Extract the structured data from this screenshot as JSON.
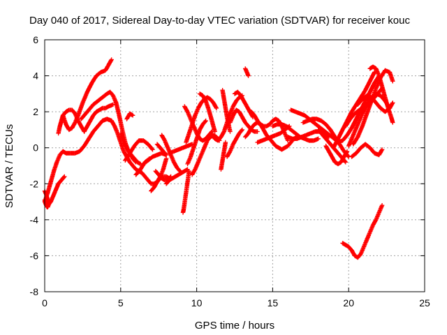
{
  "chart_data": {
    "type": "scatter",
    "title": "Day 040 of 2017, Sidereal Day-to-day VTEC variation (SDTVAR) for receiver kouc",
    "xlabel": "GPS time / hours",
    "ylabel": "SDTVAR / TECUs",
    "xlim": [
      0,
      25
    ],
    "ylim": [
      -8,
      6
    ],
    "xticks": [
      "0",
      "5",
      "10",
      "15",
      "20",
      "25"
    ],
    "yticks": [
      "-8",
      "-6",
      "-4",
      "-2",
      "0",
      "2",
      "4",
      "6"
    ],
    "grid": true,
    "marker": "plus",
    "color": "#ff0000",
    "series": [
      {
        "x": [
          0.0,
          0.05,
          0.1,
          0.15,
          0.2,
          0.25,
          0.3,
          0.35
        ],
        "y": [
          -2.9,
          -3.1,
          -3.2,
          -3.3,
          -3.3,
          -3.2,
          -3.1,
          -3.0
        ]
      },
      {
        "x": [
          0.0,
          0.1,
          0.2,
          0.3,
          0.4,
          0.5,
          0.6,
          0.7,
          0.8,
          0.9,
          1.0,
          1.1,
          1.2,
          1.3
        ],
        "y": [
          -2.4,
          -2.6,
          -2.9,
          -3.1,
          -3.0,
          -2.8,
          -2.6,
          -2.4,
          -2.2,
          -2.0,
          -1.9,
          -1.8,
          -1.7,
          -1.6
        ]
      },
      {
        "x": [
          0.0,
          0.2,
          0.4,
          0.6,
          0.8,
          1.0,
          1.2,
          1.4,
          1.7,
          2.0,
          2.3,
          2.6,
          2.9,
          3.2,
          3.5,
          3.8,
          4.1,
          4.4
        ],
        "y": [
          -3.0,
          -2.5,
          -1.9,
          -1.3,
          -0.8,
          -0.4,
          -0.2,
          -0.3,
          -0.3,
          -0.3,
          -0.2,
          0.1,
          0.5,
          0.9,
          1.2,
          1.5,
          1.6,
          1.5
        ]
      },
      {
        "x": [
          0.9,
          1.0,
          1.1,
          1.2,
          1.4,
          1.6,
          1.8,
          2.0,
          2.2,
          2.4,
          2.6
        ],
        "y": [
          0.8,
          1.2,
          1.5,
          1.8,
          2.0,
          2.1,
          2.1,
          1.9,
          1.5,
          1.2,
          0.9
        ]
      },
      {
        "x": [
          1.2,
          1.4,
          1.6,
          1.8,
          2.0,
          2.2,
          2.5,
          2.8,
          3.1,
          3.4,
          3.7,
          4.0,
          4.2,
          4.4
        ],
        "y": [
          1.8,
          1.3,
          1.0,
          1.1,
          1.4,
          1.8,
          2.5,
          3.1,
          3.6,
          4.0,
          4.2,
          4.3,
          4.6,
          4.9
        ]
      },
      {
        "x": [
          2.4,
          2.6,
          2.8,
          3.0,
          3.2,
          3.5,
          3.8,
          4.1,
          4.3,
          4.5,
          4.7
        ],
        "y": [
          1.6,
          1.8,
          2.0,
          2.2,
          2.4,
          2.6,
          2.8,
          3.0,
          3.1,
          2.9,
          2.5
        ]
      },
      {
        "x": [
          2.6,
          2.8,
          3.0,
          3.2,
          3.4,
          3.6,
          3.8,
          4.0,
          4.2,
          4.5
        ],
        "y": [
          0.9,
          1.2,
          1.5,
          1.8,
          2.0,
          2.1,
          2.2,
          2.2,
          2.3,
          2.4
        ]
      },
      {
        "x": [
          4.4,
          4.6,
          4.8,
          5.0,
          5.2,
          5.4,
          5.6,
          5.8,
          6.0,
          6.2,
          6.4
        ],
        "y": [
          1.5,
          1.2,
          0.8,
          0.3,
          -0.2,
          -0.5,
          -0.8,
          -1.0,
          -1.2,
          -1.3,
          -1.4
        ]
      },
      {
        "x": [
          4.7,
          4.9,
          5.1,
          5.3,
          5.5,
          5.7,
          5.9,
          6.1,
          6.3
        ],
        "y": [
          2.5,
          1.8,
          1.0,
          0.3,
          -0.2,
          -0.4,
          -0.6,
          -0.8,
          -0.9
        ]
      },
      {
        "x": [
          5.0,
          5.2,
          5.4,
          5.6,
          5.8,
          6.0
        ],
        "y": [
          0.8,
          0.3,
          0.0,
          -0.3,
          -0.6,
          -0.8
        ]
      },
      {
        "x": [
          5.3,
          5.6,
          5.9,
          6.2,
          6.5,
          6.8,
          7.1
        ],
        "y": [
          -0.7,
          -0.3,
          0.1,
          0.4,
          0.4,
          0.2,
          -0.1
        ]
      },
      {
        "x": [
          5.4,
          5.6,
          5.8
        ],
        "y": [
          1.6,
          1.9,
          1.8
        ]
      },
      {
        "x": [
          6.0,
          6.3,
          6.6,
          6.9
        ],
        "y": [
          -1.5,
          -1.2,
          -0.8,
          -0.6
        ]
      },
      {
        "x": [
          6.4,
          6.6,
          6.8,
          7.0,
          7.2,
          7.4,
          7.6,
          7.8,
          8.0
        ],
        "y": [
          -1.4,
          -1.6,
          -1.8,
          -2.0,
          -2.0,
          -1.9,
          -1.6,
          -1.2,
          -0.6
        ]
      },
      {
        "x": [
          6.5,
          6.8,
          7.1,
          7.4,
          7.7,
          8.0
        ],
        "y": [
          -0.9,
          -0.7,
          -0.5,
          -0.4,
          -0.3,
          -0.4
        ]
      },
      {
        "x": [
          7.0,
          7.2,
          7.4,
          7.6,
          7.8,
          8.0,
          8.2
        ],
        "y": [
          -2.4,
          -2.2,
          -1.9,
          -1.7,
          -1.6,
          -1.6,
          -1.7
        ]
      },
      {
        "x": [
          7.3,
          7.5,
          7.7,
          7.9,
          8.1,
          8.3
        ],
        "y": [
          -1.3,
          -1.5,
          -1.7,
          -1.8,
          -1.8,
          -1.6
        ]
      },
      {
        "x": [
          7.4,
          7.6,
          7.8,
          8.0
        ],
        "y": [
          0.2,
          0.0,
          -0.2,
          -0.4
        ]
      },
      {
        "x": [
          7.7,
          7.9,
          8.1,
          8.3,
          8.5,
          8.7,
          8.9
        ],
        "y": [
          0.7,
          0.4,
          0.0,
          -0.4,
          -0.8,
          -1.1,
          -1.3
        ]
      },
      {
        "x": [
          8.0,
          8.2,
          8.4,
          8.6,
          8.8,
          9.0,
          9.2,
          9.4
        ],
        "y": [
          -2.0,
          -1.8,
          -1.7,
          -1.6,
          -1.5,
          -1.4,
          -1.3,
          -1.2
        ]
      },
      {
        "x": [
          8.2,
          8.5,
          8.8,
          9.1,
          9.4,
          9.7
        ],
        "y": [
          -0.3,
          -0.2,
          -0.1,
          0.0,
          0.1,
          0.2
        ]
      },
      {
        "x": [
          9.1,
          9.15,
          9.2,
          9.25,
          9.3,
          9.35,
          9.4,
          9.45,
          9.5
        ],
        "y": [
          -3.6,
          -3.4,
          -3.1,
          -2.8,
          -2.5,
          -2.2,
          -1.9,
          -1.6,
          -1.3
        ]
      },
      {
        "x": [
          9.3,
          9.5,
          9.7,
          9.9,
          10.1,
          10.3,
          10.5,
          10.7,
          10.9,
          11.1,
          11.3
        ],
        "y": [
          0.3,
          0.8,
          1.3,
          1.8,
          2.2,
          2.5,
          2.7,
          2.8,
          2.7,
          2.5,
          2.2
        ]
      },
      {
        "x": [
          9.4,
          9.6,
          9.8,
          10.0,
          10.2,
          10.4,
          10.6
        ],
        "y": [
          -0.9,
          -0.5,
          0.0,
          0.5,
          1.0,
          1.3,
          1.5
        ]
      },
      {
        "x": [
          9.2,
          9.4,
          9.6,
          9.8,
          10.0,
          10.2,
          10.4,
          10.6,
          10.8,
          11.0
        ],
        "y": [
          2.3,
          2.0,
          1.6,
          1.2,
          0.8,
          0.5,
          0.4,
          0.5,
          0.7,
          0.9
        ]
      },
      {
        "x": [
          9.7,
          9.9,
          10.1,
          10.3,
          10.5,
          10.7,
          10.9,
          11.1,
          11.3,
          11.5
        ],
        "y": [
          -1.5,
          -1.2,
          -0.8,
          -0.4,
          0.0,
          0.4,
          0.6,
          0.7,
          0.6,
          0.4
        ]
      },
      {
        "x": [
          10.2,
          10.4,
          10.6,
          10.8,
          11.0,
          11.2
        ],
        "y": [
          3.0,
          2.9,
          2.6,
          2.1,
          1.5,
          0.9
        ]
      },
      {
        "x": [
          11.0,
          11.2,
          11.4,
          11.6,
          11.8,
          12.0,
          12.2,
          12.4,
          12.6,
          12.8,
          13.0
        ],
        "y": [
          0.7,
          0.5,
          0.4,
          0.6,
          0.9,
          1.4,
          1.9,
          2.3,
          2.6,
          2.8,
          2.9
        ]
      },
      {
        "x": [
          11.6,
          11.7,
          11.8,
          11.9
        ],
        "y": [
          -1.2,
          -0.7,
          -0.2,
          0.3
        ]
      },
      {
        "x": [
          11.7,
          11.8,
          11.9,
          12.0,
          12.1,
          12.2
        ],
        "y": [
          3.2,
          2.7,
          2.2,
          1.7,
          1.3,
          0.9
        ]
      },
      {
        "x": [
          12.0,
          12.2,
          12.4,
          12.6,
          12.8,
          13.0
        ],
        "y": [
          -0.5,
          -0.2,
          0.2,
          0.5,
          0.8,
          1.0
        ]
      },
      {
        "x": [
          12.2,
          12.4,
          12.6,
          12.8,
          13.0,
          13.2,
          13.4,
          13.6,
          13.8,
          14.0
        ],
        "y": [
          1.4,
          1.8,
          2.1,
          2.0,
          1.7,
          1.4,
          1.2,
          1.0,
          0.9,
          0.9
        ]
      },
      {
        "x": [
          12.5,
          12.7,
          12.9,
          13.1,
          13.3,
          13.5,
          13.7
        ],
        "y": [
          3.0,
          3.1,
          2.9,
          2.6,
          2.3,
          2.0,
          1.7
        ]
      },
      {
        "x": [
          13.2,
          13.25,
          13.3,
          13.35,
          13.4
        ],
        "y": [
          4.4,
          4.3,
          4.2,
          4.1,
          4.0
        ]
      },
      {
        "x": [
          13.2,
          13.4,
          13.6,
          13.8,
          14.0,
          14.2,
          14.4,
          14.6
        ],
        "y": [
          0.6,
          0.8,
          1.1,
          1.3,
          1.4,
          1.3,
          1.0,
          0.7
        ]
      },
      {
        "x": [
          13.6,
          13.8,
          14.0,
          14.2,
          14.4,
          14.6,
          14.8,
          15.0,
          15.2,
          15.4,
          15.6,
          15.8,
          16.0
        ],
        "y": [
          2.0,
          1.8,
          1.5,
          1.3,
          1.2,
          1.2,
          1.3,
          1.5,
          1.6,
          1.5,
          1.2,
          0.8,
          0.4
        ]
      },
      {
        "x": [
          14.0,
          14.3,
          14.6,
          14.9,
          15.2,
          15.5,
          15.8,
          16.1
        ],
        "y": [
          0.3,
          0.4,
          0.5,
          0.6,
          0.7,
          0.8,
          1.0,
          1.2
        ]
      },
      {
        "x": [
          14.6,
          14.8,
          15.0,
          15.2,
          15.4,
          15.6,
          15.8,
          16.0,
          16.2,
          16.4,
          16.6
        ],
        "y": [
          0.7,
          0.5,
          0.3,
          0.1,
          0.0,
          -0.1,
          0.0,
          0.1,
          0.3,
          0.5,
          0.6
        ]
      },
      {
        "x": [
          15.0,
          15.3,
          15.6,
          15.9,
          16.2,
          16.5,
          16.8,
          17.1,
          17.4,
          17.7,
          18.0
        ],
        "y": [
          1.2,
          1.3,
          1.3,
          1.2,
          1.0,
          0.8,
          0.6,
          0.5,
          0.4,
          0.4,
          0.5
        ]
      },
      {
        "x": [
          16.2,
          16.5,
          16.8,
          17.1,
          17.4,
          17.7,
          18.0,
          18.3,
          18.6,
          18.9,
          19.2
        ],
        "y": [
          2.1,
          2.0,
          1.9,
          1.8,
          1.6,
          1.4,
          1.2,
          1.0,
          0.8,
          0.6,
          0.4
        ]
      },
      {
        "x": [
          16.0,
          16.3,
          16.6,
          16.9,
          17.2,
          17.5,
          17.8,
          18.1,
          18.4,
          18.7
        ],
        "y": [
          0.6,
          0.5,
          0.5,
          0.6,
          0.7,
          0.8,
          0.9,
          0.9,
          0.8,
          0.6
        ]
      },
      {
        "x": [
          17.0,
          17.3,
          17.6,
          17.9,
          18.2,
          18.5,
          18.8,
          19.1,
          19.4,
          19.7,
          20.0
        ],
        "y": [
          1.4,
          1.5,
          1.6,
          1.6,
          1.5,
          1.3,
          1.0,
          0.6,
          0.2,
          -0.2,
          -0.5
        ]
      },
      {
        "x": [
          18.0,
          18.3,
          18.6,
          18.9,
          19.2,
          19.5,
          19.8
        ],
        "y": [
          1.0,
          0.7,
          0.4,
          0.1,
          -0.2,
          -0.5,
          -0.8
        ]
      },
      {
        "x": [
          18.5,
          18.7,
          18.9,
          19.1,
          19.3,
          19.5,
          19.7,
          19.9
        ],
        "y": [
          0.1,
          -0.2,
          -0.5,
          -0.8,
          -0.9,
          -0.8,
          -0.5,
          -0.2
        ]
      },
      {
        "x": [
          19.0,
          19.3,
          19.6,
          19.9,
          20.2,
          20.5,
          20.8,
          21.1,
          21.4,
          21.7
        ],
        "y": [
          0.0,
          0.5,
          1.0,
          1.5,
          2.0,
          2.4,
          2.8,
          3.2,
          3.7,
          4.2
        ]
      },
      {
        "x": [
          19.3,
          19.6,
          19.9,
          20.2,
          20.5,
          20.8,
          21.1,
          21.4,
          21.7,
          22.0
        ],
        "y": [
          0.3,
          0.4,
          0.7,
          1.1,
          1.6,
          2.1,
          2.6,
          3.1,
          3.6,
          4.0
        ]
      },
      {
        "x": [
          19.8,
          20.1,
          20.4,
          20.7,
          21.0,
          21.3,
          21.6,
          21.9,
          22.2
        ],
        "y": [
          1.2,
          1.6,
          1.9,
          2.1,
          2.2,
          2.4,
          2.7,
          3.0,
          3.3
        ]
      },
      {
        "x": [
          20.0,
          20.3,
          20.6,
          20.9,
          21.2,
          21.5,
          21.8,
          22.1,
          22.4,
          22.7
        ],
        "y": [
          0.1,
          0.7,
          1.3,
          1.9,
          2.4,
          2.8,
          3.0,
          2.9,
          2.6,
          2.2
        ]
      },
      {
        "x": [
          20.3,
          20.6,
          20.9,
          21.2,
          21.5,
          21.8,
          22.1,
          22.4,
          22.7,
          22.9
        ],
        "y": [
          0.2,
          0.6,
          1.2,
          1.9,
          2.6,
          3.3,
          3.9,
          4.3,
          4.2,
          3.7
        ]
      },
      {
        "x": [
          20.6,
          20.9,
          21.2,
          21.5,
          21.8,
          22.1,
          22.4,
          22.7,
          22.9
        ],
        "y": [
          2.4,
          2.7,
          2.9,
          2.8,
          2.5,
          2.2,
          2.0,
          2.2,
          2.5
        ]
      },
      {
        "x": [
          21.4,
          21.6,
          21.8,
          22.0,
          22.2,
          22.4,
          22.6,
          22.8,
          22.9
        ],
        "y": [
          4.4,
          4.5,
          4.4,
          4.0,
          3.4,
          2.8,
          2.2,
          1.7,
          1.4
        ]
      },
      {
        "x": [
          20.2,
          20.5,
          20.8,
          21.1,
          21.4,
          21.7,
          22.0,
          22.2
        ],
        "y": [
          -0.5,
          -0.3,
          0.0,
          0.2,
          0.0,
          -0.3,
          -0.4,
          -0.1
        ]
      },
      {
        "x": [
          19.6,
          19.8,
          20.0,
          20.2,
          20.4,
          20.6,
          20.8,
          21.0,
          21.2,
          21.4,
          21.6,
          21.8,
          22.0,
          22.2
        ],
        "y": [
          -5.3,
          -5.4,
          -5.5,
          -5.7,
          -6.0,
          -6.1,
          -5.9,
          -5.5,
          -5.1,
          -4.7,
          -4.3,
          -4.0,
          -3.6,
          -3.2
        ]
      }
    ]
  }
}
